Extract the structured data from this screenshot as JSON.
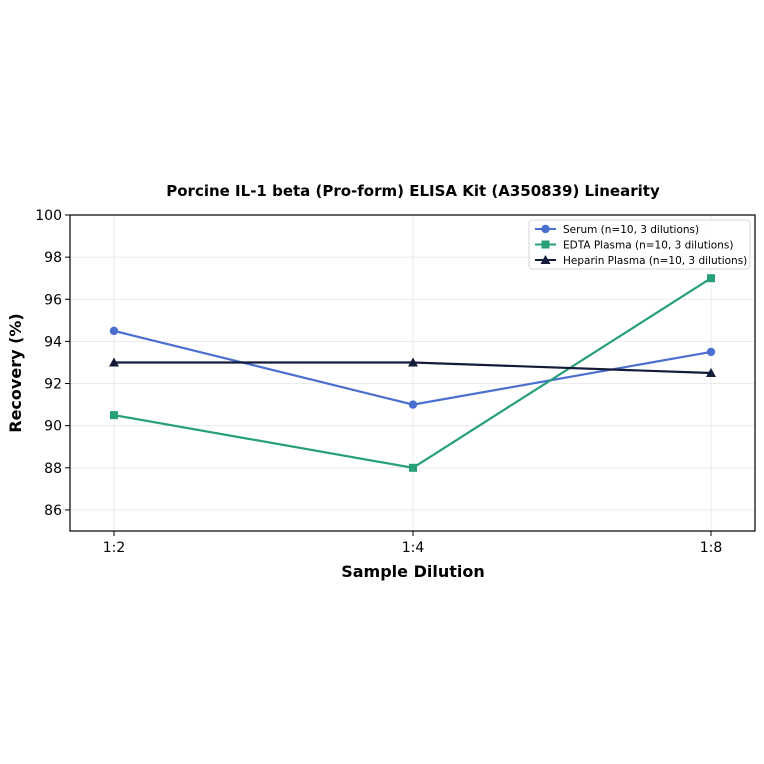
{
  "chart_data": {
    "type": "line",
    "title": "Porcine IL-1 beta (Pro-form) ELISA Kit (A350839) Linearity",
    "xlabel": "Sample Dilution",
    "ylabel": "Recovery (%)",
    "categories": [
      "1:2",
      "1:4",
      "1:8"
    ],
    "ylim": [
      85,
      100
    ],
    "yticks": [
      86,
      88,
      90,
      92,
      94,
      96,
      98,
      100
    ],
    "grid": true,
    "legend_position": "top-right",
    "series": [
      {
        "name": "Serum (n=10, 3 dilutions)",
        "values": [
          94.5,
          91.0,
          93.5
        ],
        "color": "#4a6fd0",
        "marker": "circle"
      },
      {
        "name": "EDTA Plasma (n=10, 3 dilutions)",
        "values": [
          90.5,
          88.0,
          97.0
        ],
        "color": "#27a07a",
        "marker": "square"
      },
      {
        "name": "Heparin Plasma (n=10, 3 dilutions)",
        "values": [
          93.0,
          93.0,
          92.5
        ],
        "color": "#141c3a",
        "marker": "triangle"
      }
    ]
  }
}
